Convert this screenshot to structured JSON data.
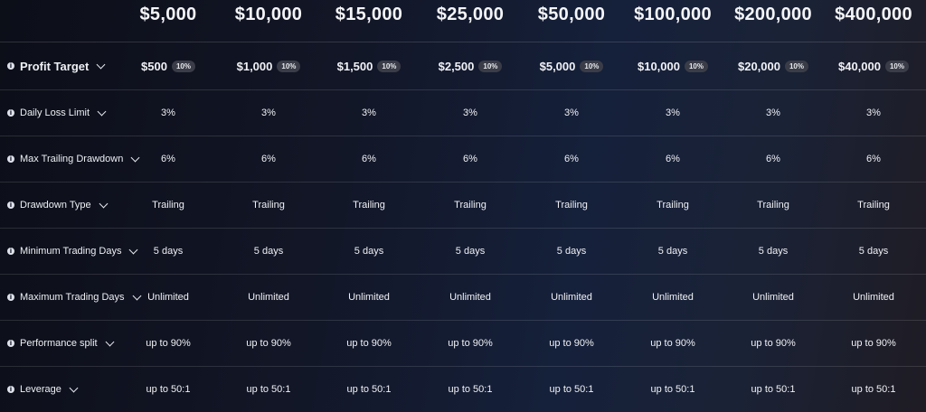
{
  "plans": [
    "$5,000",
    "$10,000",
    "$15,000",
    "$25,000",
    "$50,000",
    "$100,000",
    "$200,000",
    "$400,000"
  ],
  "rows": [
    {
      "label": "Profit Target",
      "values": [
        "$500",
        "$1,000",
        "$1,500",
        "$2,500",
        "$5,000",
        "$10,000",
        "$20,000",
        "$40,000"
      ],
      "badge": "10%"
    },
    {
      "label": "Daily Loss Limit",
      "values": [
        "3%",
        "3%",
        "3%",
        "3%",
        "3%",
        "3%",
        "3%",
        "3%"
      ]
    },
    {
      "label": "Max Trailing Drawdown",
      "values": [
        "6%",
        "6%",
        "6%",
        "6%",
        "6%",
        "6%",
        "6%",
        "6%"
      ]
    },
    {
      "label": "Drawdown Type",
      "values": [
        "Trailing",
        "Trailing",
        "Trailing",
        "Trailing",
        "Trailing",
        "Trailing",
        "Trailing",
        "Trailing"
      ]
    },
    {
      "label": "Minimum Trading Days",
      "values": [
        "5 days",
        "5 days",
        "5 days",
        "5 days",
        "5 days",
        "5 days",
        "5 days",
        "5 days"
      ]
    },
    {
      "label": "Maximum Trading Days",
      "values": [
        "Unlimited",
        "Unlimited",
        "Unlimited",
        "Unlimited",
        "Unlimited",
        "Unlimited",
        "Unlimited",
        "Unlimited"
      ]
    },
    {
      "label": "Performance split",
      "values": [
        "up to 90%",
        "up to 90%",
        "up to 90%",
        "up to 90%",
        "up to 90%",
        "up to 90%",
        "up to 90%",
        "up to 90%"
      ]
    },
    {
      "label": "Leverage",
      "values": [
        "up to 50:1",
        "up to 50:1",
        "up to 50:1",
        "up to 50:1",
        "up to 50:1",
        "up to 50:1",
        "up to 50:1",
        "up to 50:1"
      ]
    }
  ],
  "icons": {
    "info": "info-icon",
    "expand": "chevron-down-icon"
  }
}
